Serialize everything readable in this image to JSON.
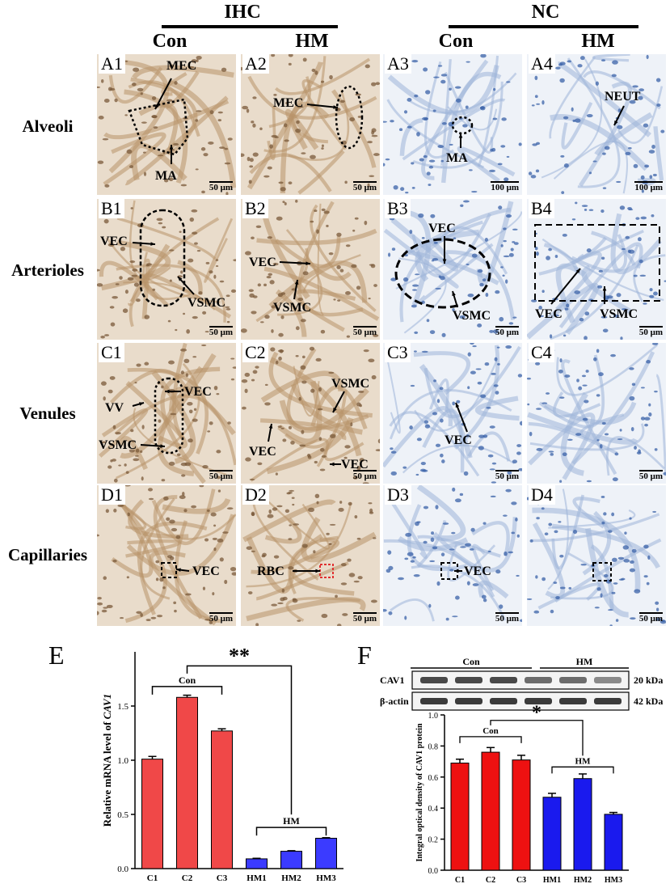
{
  "headers": {
    "ihc": "IHC",
    "nc": "NC",
    "con_1": "Con",
    "hm_1": "HM",
    "con_2": "Con",
    "hm_2": "HM"
  },
  "rows": {
    "alveoli": "Alveoli",
    "arterioles": "Arterioles",
    "venules": "Venules",
    "capillaries": "Capillaries"
  },
  "panels": {
    "a1": {
      "label": "A1",
      "scale": "50 μm",
      "ann": [
        "MEC",
        "MA"
      ],
      "tone": "brown"
    },
    "a2": {
      "label": "A2",
      "scale": "50 μm",
      "ann": [
        "MEC"
      ],
      "tone": "brown"
    },
    "a3": {
      "label": "A3",
      "scale": "100 μm",
      "ann": [
        "MA"
      ],
      "tone": "blue"
    },
    "a4": {
      "label": "A4",
      "scale": "100 μm",
      "ann": [
        "NEUT"
      ],
      "tone": "blue"
    },
    "b1": {
      "label": "B1",
      "scale": "50 μm",
      "ann": [
        "VEC",
        "VSMC"
      ],
      "tone": "brown"
    },
    "b2": {
      "label": "B2",
      "scale": "50 μm",
      "ann": [
        "VEC",
        "VSMC"
      ],
      "tone": "brown"
    },
    "b3": {
      "label": "B3",
      "scale": "50 μm",
      "ann": [
        "VEC",
        "VSMC"
      ],
      "tone": "blue"
    },
    "b4": {
      "label": "B4",
      "scale": "50 μm",
      "ann": [
        "VEC",
        "VSMC"
      ],
      "tone": "blue"
    },
    "c1": {
      "label": "C1",
      "scale": "50 μm",
      "ann": [
        "VEC",
        "VV",
        "VSMC"
      ],
      "tone": "brown"
    },
    "c2": {
      "label": "C2",
      "scale": "50 μm",
      "ann": [
        "VSMC",
        "VEC",
        "VEC"
      ],
      "tone": "brown"
    },
    "c3": {
      "label": "C3",
      "scale": "50 μm",
      "ann": [
        "VEC"
      ],
      "tone": "blue"
    },
    "c4": {
      "label": "C4",
      "scale": "50 μm",
      "ann": [],
      "tone": "blue"
    },
    "d1": {
      "label": "D1",
      "scale": "50 μm",
      "ann": [
        "VEC"
      ],
      "tone": "brown"
    },
    "d2": {
      "label": "D2",
      "scale": "50 μm",
      "ann": [
        "RBC"
      ],
      "tone": "brown"
    },
    "d3": {
      "label": "D3",
      "scale": "50 μm",
      "ann": [
        "VEC"
      ],
      "tone": "blue"
    },
    "d4": {
      "label": "D4",
      "scale": "50 μm",
      "ann": [],
      "tone": "blue"
    }
  },
  "colors": {
    "brown_bg": "#e9dccb",
    "brown_cell": "#7a5a3a",
    "blue_bg": "#eef2f8",
    "blue_cell": "#3a62a8",
    "red": "#f04848",
    "blue": "#3b3bff",
    "red_bar": "#ee1111",
    "blue_bar": "#1a1aee"
  },
  "chart_e": {
    "panel_label": "E",
    "chart_data": {
      "type": "bar",
      "categories": [
        "C1",
        "C2",
        "C3",
        "HM1",
        "HM2",
        "HM3"
      ],
      "values": [
        1.01,
        1.58,
        1.27,
        0.09,
        0.16,
        0.28
      ],
      "errors": [
        0.025,
        0.02,
        0.02,
        0.005,
        0.005,
        0.005
      ],
      "ylabel_prefix": "Relative mRNA level of ",
      "ylabel_gene": "CAV1",
      "ylim": [
        0,
        2.0
      ],
      "yticks": [
        "0.0",
        "0.5",
        "1.0",
        "1.5"
      ],
      "groups": [
        {
          "name": "Con",
          "from": 0,
          "to": 2
        },
        {
          "name": "HM",
          "from": 3,
          "to": 5
        }
      ],
      "significance": "**"
    }
  },
  "chart_f": {
    "panel_label": "F",
    "blot": {
      "groups": [
        "Con",
        "HM"
      ],
      "rows": [
        {
          "name": "CAV1",
          "size": "20 kDa"
        },
        {
          "name": "β-actin",
          "size": "42 kDa"
        }
      ]
    },
    "chart_data": {
      "type": "bar",
      "categories": [
        "C1",
        "C2",
        "C3",
        "HM1",
        "HM2",
        "HM3"
      ],
      "values": [
        0.69,
        0.76,
        0.71,
        0.47,
        0.59,
        0.36
      ],
      "errors": [
        0.025,
        0.03,
        0.03,
        0.025,
        0.03,
        0.012
      ],
      "ylabel": "Integral optical density of CAV1 protein",
      "ylim": [
        0,
        1.0
      ],
      "yticks": [
        "0.0",
        "0.2",
        "0.4",
        "0.6",
        "0.8",
        "1.0"
      ],
      "groups": [
        {
          "name": "Con",
          "from": 0,
          "to": 2
        },
        {
          "name": "HM",
          "from": 3,
          "to": 5
        }
      ],
      "significance": "*"
    }
  }
}
